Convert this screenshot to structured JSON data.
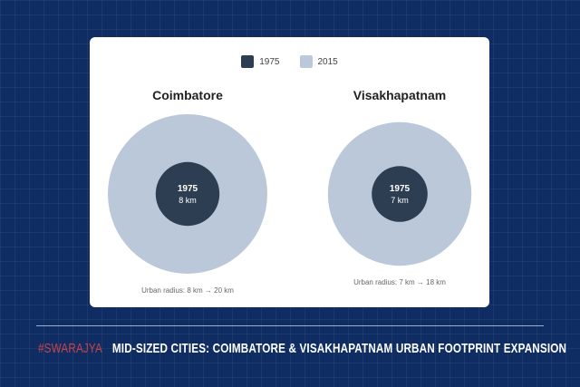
{
  "chart_data": {
    "type": "nested-circles",
    "legend": [
      {
        "label": "1975",
        "color": "#2e3e52"
      },
      {
        "label": "2015",
        "color": "#bac8d9"
      }
    ],
    "cities": [
      {
        "name": "Coimbatore",
        "radius_1975_km": 8,
        "radius_2015_km": 20,
        "inner_label": "1975",
        "inner_value": "8 km",
        "caption": "Urban radius: 8 km → 20 km"
      },
      {
        "name": "Visakhapatnam",
        "radius_1975_km": 7,
        "radius_2015_km": 18,
        "inner_label": "1975",
        "inner_value": "7 km",
        "caption": "Urban radius: 7 km → 18 km"
      }
    ]
  },
  "footer": {
    "brand": "#SWARAJYA",
    "title": "MID-SIZED CITIES: COIMBATORE & VISAKHAPATNAM URBAN FOOTPRINT EXPANSION"
  }
}
